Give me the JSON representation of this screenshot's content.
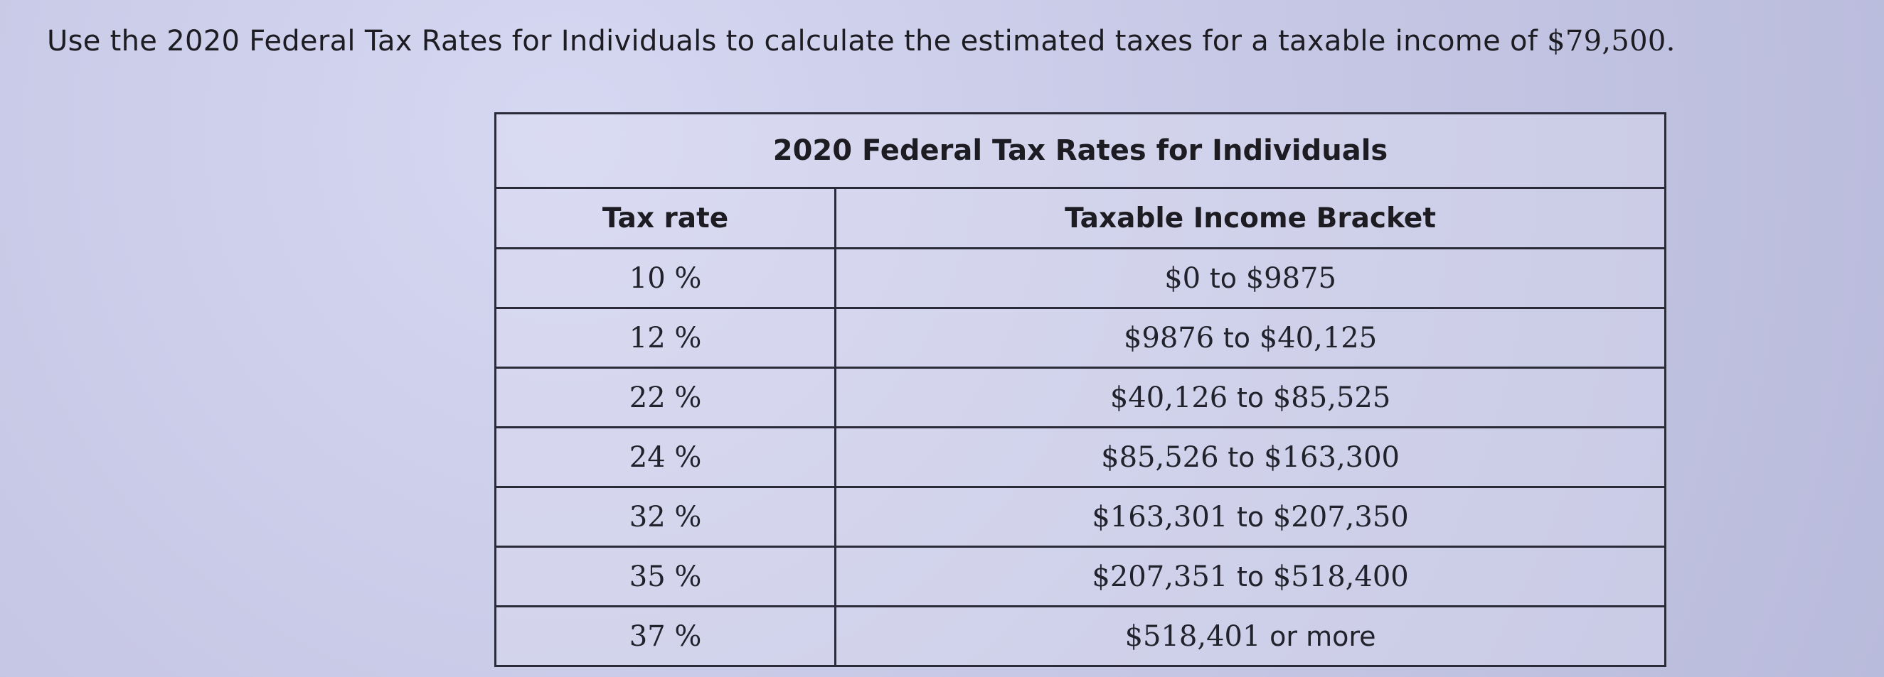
{
  "question": {
    "text": "Use the 2020 Federal Tax Rates for Individuals to calculate the estimated taxes for a taxable income of ",
    "amount": "$79,500."
  },
  "table": {
    "caption": "2020 Federal Tax Rates for Individuals",
    "headers": {
      "rate": "Tax rate",
      "bracket": "Taxable Income Bracket"
    },
    "rows": [
      {
        "rate": "10 %",
        "low": "$0",
        "sep": "to",
        "high": "$9875"
      },
      {
        "rate": "12 %",
        "low": "$9876",
        "sep": "to",
        "high": "$40,125"
      },
      {
        "rate": "22 %",
        "low": "$40,126",
        "sep": "to",
        "high": "$85,525"
      },
      {
        "rate": "24 %",
        "low": "$85,526",
        "sep": "to",
        "high": "$163,300"
      },
      {
        "rate": "32 %",
        "low": "$163,301",
        "sep": "to",
        "high": "$207,350"
      },
      {
        "rate": "35 %",
        "low": "$207,351",
        "sep": "to",
        "high": "$518,400"
      },
      {
        "rate": "37 %",
        "low": "$518,401",
        "sep": "or more",
        "high": ""
      }
    ]
  }
}
